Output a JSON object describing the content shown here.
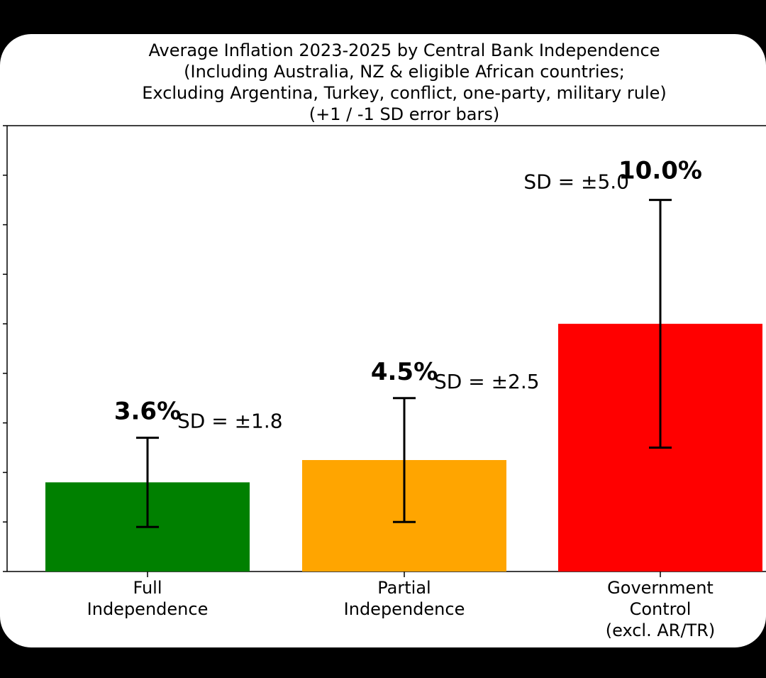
{
  "chart_data": {
    "type": "bar",
    "title": [
      "Average Inflation 2023-2025 by Central Bank Independence",
      "(Including Australia, NZ & eligible African countries;",
      "Excluding Argentina, Turkey, conflict, one-party, military rule)",
      "(+1 / -1 SD error bars)"
    ],
    "categories": [
      [
        "Full",
        "Independence"
      ],
      [
        "Partial",
        "Independence"
      ],
      [
        "Government",
        "Control",
        "(excl. AR/TR)"
      ]
    ],
    "values": [
      3.6,
      4.5,
      10.0
    ],
    "errors": [
      1.8,
      2.5,
      5.0
    ],
    "value_labels": [
      "3.6%",
      "4.5%",
      "10.0%"
    ],
    "sd_labels": [
      "SD = ±1.8",
      "SD = ±2.5",
      "SD = ±5.0"
    ],
    "colors": [
      "#008000",
      "#ffa500",
      "#ff0000"
    ],
    "ylim": [
      0,
      18
    ],
    "ylabel": "",
    "xlabel": "",
    "grid": false
  }
}
